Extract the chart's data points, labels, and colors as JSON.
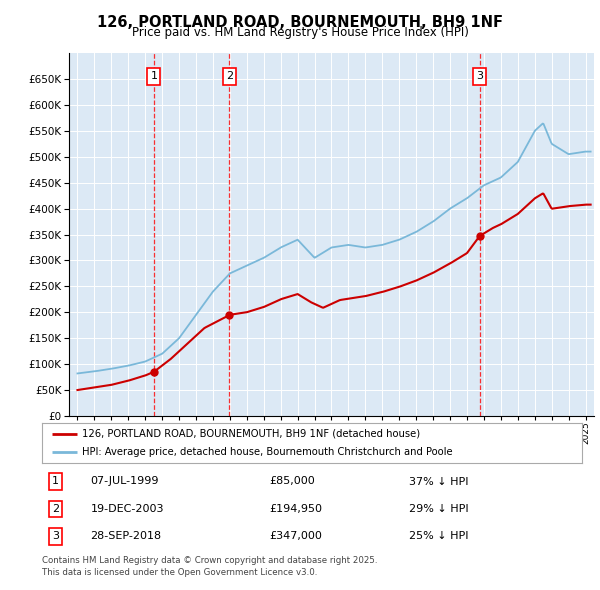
{
  "title": "126, PORTLAND ROAD, BOURNEMOUTH, BH9 1NF",
  "subtitle": "Price paid vs. HM Land Registry's House Price Index (HPI)",
  "transactions": [
    {
      "num": 1,
      "date_str": "07-JUL-1999",
      "date_x": 1999.51,
      "price": 85000,
      "pct": "37% ↓ HPI"
    },
    {
      "num": 2,
      "date_str": "19-DEC-2003",
      "date_x": 2003.96,
      "price": 194950,
      "pct": "29% ↓ HPI"
    },
    {
      "num": 3,
      "date_str": "28-SEP-2018",
      "date_x": 2018.74,
      "price": 347000,
      "pct": "25% ↓ HPI"
    }
  ],
  "legend_labels": [
    "126, PORTLAND ROAD, BOURNEMOUTH, BH9 1NF (detached house)",
    "HPI: Average price, detached house, Bournemouth Christchurch and Poole"
  ],
  "footer": "Contains HM Land Registry data © Crown copyright and database right 2025.\nThis data is licensed under the Open Government Licence v3.0.",
  "hpi_color": "#7ab8d9",
  "price_color": "#cc0000",
  "ylim": [
    0,
    700000
  ],
  "yticks": [
    0,
    50000,
    100000,
    150000,
    200000,
    250000,
    300000,
    350000,
    400000,
    450000,
    500000,
    550000,
    600000,
    650000
  ],
  "xlim": [
    1994.5,
    2025.5
  ],
  "background_color": "#dce9f5"
}
